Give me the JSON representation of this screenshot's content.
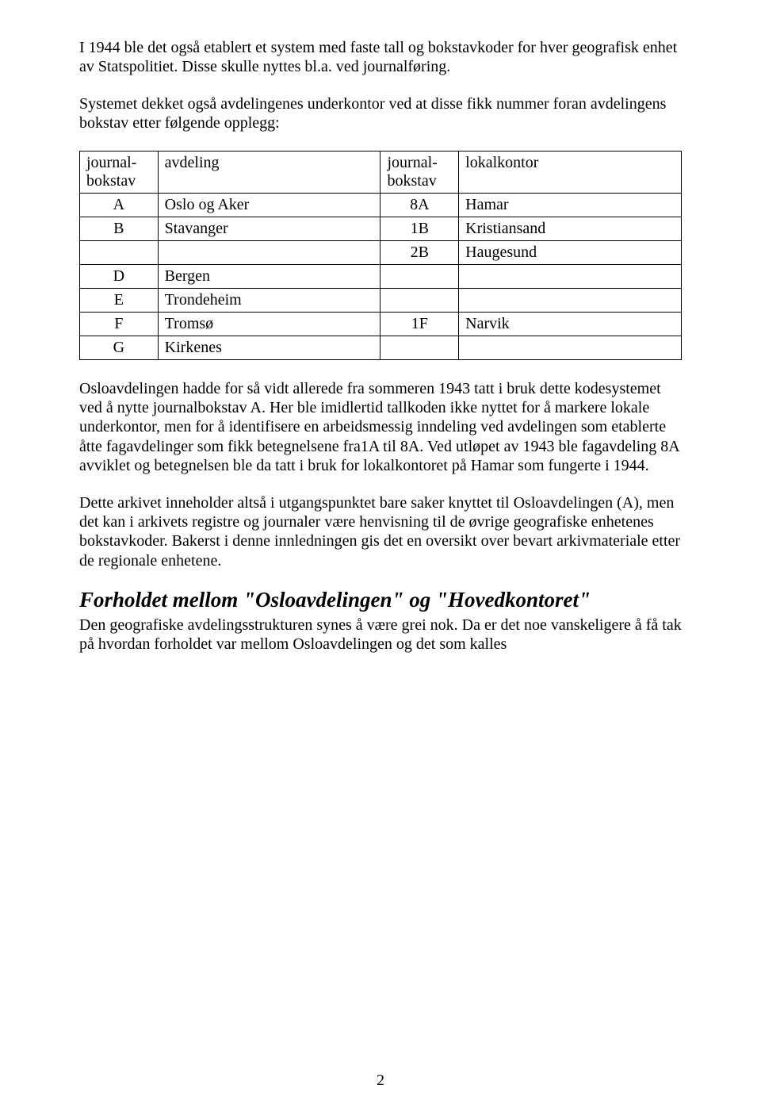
{
  "para1": "I 1944 ble det også etablert et system med faste tall og bokstavkoder for hver geografisk enhet av Statspolitiet. Disse skulle nyttes bl.a. ved journalføring.",
  "para2": "Systemet dekket også avdelingenes underkontor ved at disse fikk nummer foran avdelingens bokstav etter følgende opplegg:",
  "table": {
    "headers": [
      "journal-\nbokstav",
      "avdeling",
      "journal-\nbokstav",
      "lokalkontor"
    ],
    "rows": [
      [
        "A",
        "Oslo og Aker",
        "8A",
        "Hamar"
      ],
      [
        "B",
        "Stavanger",
        "1B",
        "Kristiansand"
      ],
      [
        "",
        "",
        "2B",
        "Haugesund"
      ],
      [
        "D",
        "Bergen",
        "",
        ""
      ],
      [
        "E",
        "Trondeheim",
        "",
        ""
      ],
      [
        "F",
        "Tromsø",
        "1F",
        "Narvik"
      ],
      [
        "G",
        "Kirkenes",
        "",
        ""
      ]
    ]
  },
  "para3": "Osloavdelingen hadde for så vidt allerede fra sommeren 1943 tatt i bruk dette kodesystemet ved å nytte journalbokstav A. Her ble imidlertid tallkoden ikke nyttet for å markere lokale underkontor, men for å identifisere en arbeidsmessig inndeling ved avdelingen som etablerte åtte fagavdelinger som fikk betegnelsene fra1A til 8A. Ved utløpet av 1943 ble fagavdeling 8A avviklet og betegnelsen ble da tatt i bruk for lokalkontoret på Hamar som fungerte i 1944.",
  "para4": "Dette arkivet inneholder altså i utgangspunktet bare saker knyttet til Osloavdelingen (A), men det kan i arkivets registre og journaler være henvisning til de øvrige geografiske enhetenes bokstavkoder. Bakerst i denne innledningen gis det en oversikt over bevart arkivmateriale etter de regionale enhetene.",
  "heading": "Forholdet mellom \"Osloavdelingen\" og \"Hovedkontoret\"",
  "para5": "Den geografiske avdelingsstrukturen synes å være grei nok. Da er det noe vanskeligere å få tak på hvordan forholdet var mellom Osloavdelingen og det som kalles",
  "pageNumber": "2"
}
